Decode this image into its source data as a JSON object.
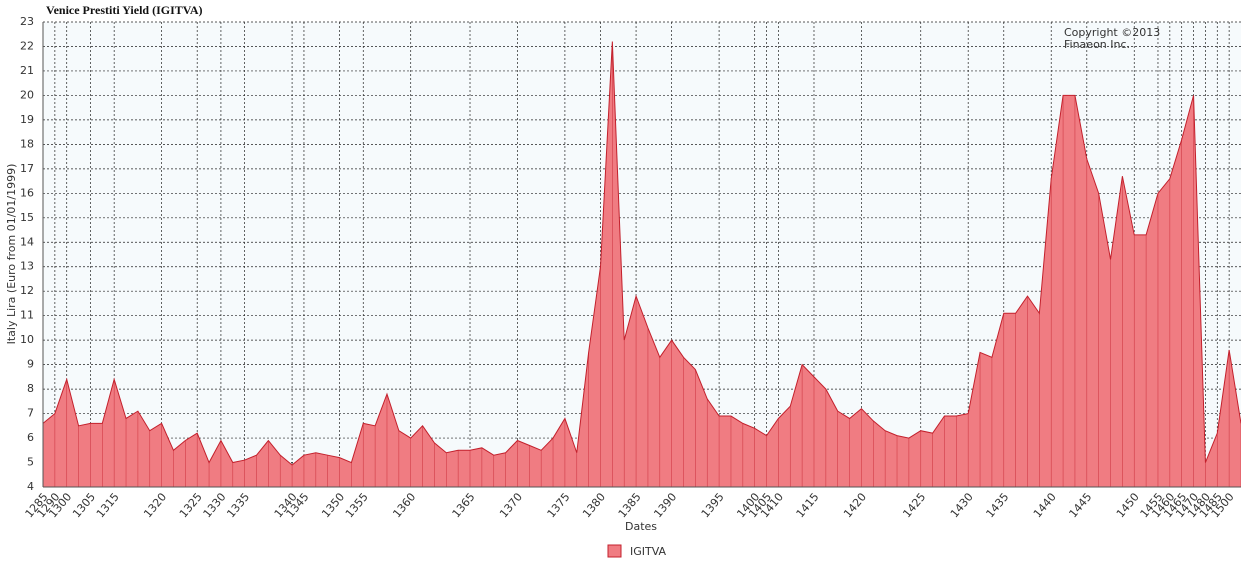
{
  "chart_data": {
    "type": "area",
    "title": "Venice Prestiti Yield (IGITVA)",
    "annotation": [
      "Copyright ©2013",
      "Finaeon Inc."
    ],
    "x_label": "Dates",
    "y_label": "Italy Lira (Euro from 01/01/1999)",
    "categories": [
      "1285",
      "1290",
      "1300",
      null,
      "1305",
      null,
      "1315",
      null,
      null,
      null,
      "1320",
      null,
      null,
      "1325",
      null,
      "1330",
      null,
      "1335",
      null,
      null,
      null,
      "1340",
      "1345",
      null,
      null,
      "1350",
      null,
      "1355",
      null,
      null,
      null,
      "1360",
      null,
      null,
      null,
      null,
      "1365",
      null,
      null,
      null,
      "1370",
      null,
      null,
      null,
      "1375",
      null,
      null,
      "1380",
      null,
      null,
      "1385",
      null,
      null,
      "1390",
      null,
      null,
      null,
      "1395",
      null,
      null,
      "1400",
      "1405",
      "1410",
      null,
      null,
      "1415",
      null,
      null,
      null,
      "1420",
      null,
      null,
      null,
      null,
      "1425",
      null,
      null,
      null,
      "1430",
      null,
      null,
      "1435",
      null,
      null,
      null,
      "1440",
      null,
      null,
      "1445",
      null,
      null,
      null,
      "1450",
      null,
      "1455",
      "1460",
      "1465",
      "1470",
      "1480",
      "1485",
      "1500",
      null
    ],
    "series": [
      {
        "name": "IGITVA",
        "color": "#f07c82",
        "line_color": "#c3202c",
        "values": [
          6.6,
          7.0,
          8.4,
          6.5,
          6.6,
          6.6,
          8.4,
          6.8,
          7.1,
          6.3,
          6.6,
          5.5,
          5.9,
          6.2,
          5.0,
          5.9,
          5.0,
          5.1,
          5.3,
          5.9,
          5.3,
          4.9,
          5.3,
          5.4,
          5.3,
          5.2,
          5.0,
          6.6,
          6.5,
          7.8,
          6.3,
          6.0,
          6.5,
          5.8,
          5.4,
          5.5,
          5.5,
          5.6,
          5.3,
          5.4,
          5.9,
          5.7,
          5.5,
          6.0,
          6.8,
          5.4,
          9.5,
          13.0,
          22.2,
          10.0,
          11.8,
          10.5,
          9.3,
          10.0,
          9.3,
          8.8,
          7.6,
          6.9,
          6.9,
          6.6,
          6.4,
          6.1,
          6.8,
          7.3,
          9.0,
          8.5,
          8.0,
          7.1,
          6.8,
          7.2,
          6.7,
          6.3,
          6.1,
          6.0,
          6.3,
          6.2,
          6.9,
          6.9,
          7.0,
          9.5,
          9.3,
          11.1,
          11.1,
          11.8,
          11.1,
          16.6,
          20.0,
          20.0,
          17.4,
          16.0,
          13.3,
          16.7,
          14.3,
          14.3,
          16.0,
          16.6,
          18.2,
          20.0,
          5.0,
          6.2,
          9.6,
          6.6
        ]
      }
    ],
    "ylim": [
      4,
      23
    ],
    "yticks": [
      4,
      5,
      6,
      7,
      8,
      9,
      10,
      11,
      12,
      13,
      14,
      15,
      16,
      17,
      18,
      19,
      20,
      21,
      22,
      23
    ],
    "grid": true,
    "legend": "bottom"
  }
}
